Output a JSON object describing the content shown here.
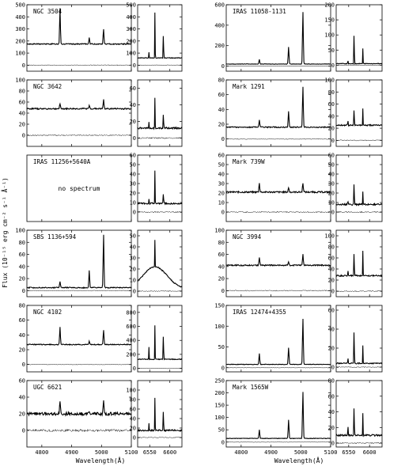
{
  "figure": {
    "ylabel": "Flux (10⁻¹⁵ erg cm⁻² s⁻¹ Å⁻¹)",
    "xlabel": "Wavelength(Å)",
    "no_spectrum_label": "no spectrum"
  },
  "chart_data": [
    {
      "type": "line",
      "title": "NGC 3504",
      "xlim": [
        4750,
        5100
      ],
      "xticks": [
        4800,
        4900,
        5000,
        5100
      ],
      "ylim": [
        -50,
        500
      ],
      "yticks": [
        0,
        100,
        200,
        300,
        400,
        500
      ],
      "baseline": 175,
      "noise": 4,
      "lines": [
        {
          "x": 4861,
          "peak": 300
        },
        {
          "x": 4959,
          "peak": 55
        },
        {
          "x": 5007,
          "peak": 125
        }
      ]
    },
    {
      "type": "line",
      "title": "",
      "xlim": [
        6520,
        6630
      ],
      "xticks": [
        6550,
        6600
      ],
      "ylim": [
        -50,
        500
      ],
      "yticks": [
        0,
        100,
        200,
        300,
        400,
        500
      ],
      "baseline": 60,
      "noise": 3,
      "lines": [
        {
          "x": 6548,
          "peak": 50
        },
        {
          "x": 6563,
          "peak": 430
        },
        {
          "x": 6584,
          "peak": 310
        }
      ]
    },
    {
      "type": "line",
      "title": "IRAS 11058-1131",
      "xlim": [
        4750,
        5100
      ],
      "xticks": [
        4800,
        4900,
        5000,
        5100
      ],
      "ylim": [
        -50,
        600
      ],
      "yticks": [
        0,
        200,
        400,
        600
      ],
      "baseline": 20,
      "noise": 2,
      "lines": [
        {
          "x": 4861,
          "peak": 45
        },
        {
          "x": 4959,
          "peak": 165
        },
        {
          "x": 5007,
          "peak": 510
        }
      ]
    },
    {
      "type": "line",
      "title": "",
      "xlim": [
        6520,
        6630
      ],
      "xticks": [
        6550,
        6600
      ],
      "ylim": [
        -20,
        200
      ],
      "yticks": [
        0,
        50,
        100,
        150,
        200
      ],
      "baseline": 5,
      "noise": 1,
      "lines": [
        {
          "x": 6548,
          "peak": 15
        },
        {
          "x": 6563,
          "peak": 150
        },
        {
          "x": 6584,
          "peak": 52
        }
      ]
    },
    {
      "type": "line",
      "title": "NGC 3642",
      "xlim": [
        4750,
        5100
      ],
      "xticks": [
        4800,
        4900,
        5000,
        5100
      ],
      "ylim": [
        -20,
        100
      ],
      "yticks": [
        0,
        20,
        40,
        60,
        80,
        100
      ],
      "baseline": 48,
      "noise": 1.2,
      "lines": [
        {
          "x": 4861,
          "peak": 10
        },
        {
          "x": 4959,
          "peak": 6
        },
        {
          "x": 5007,
          "peak": 16
        }
      ]
    },
    {
      "type": "line",
      "title": "",
      "xlim": [
        6520,
        6630
      ],
      "xticks": [
        6550,
        6600
      ],
      "ylim": [
        -10,
        70
      ],
      "yticks": [
        0,
        20,
        40,
        60
      ],
      "baseline": 12,
      "noise": 1,
      "lines": [
        {
          "x": 6548,
          "peak": 8
        },
        {
          "x": 6563,
          "peak": 42
        },
        {
          "x": 6584,
          "peak": 28
        }
      ]
    },
    {
      "type": "line",
      "title": "Mark 1291",
      "xlim": [
        4750,
        5100
      ],
      "xticks": [
        4800,
        4900,
        5000,
        5100
      ],
      "ylim": [
        -10,
        80
      ],
      "yticks": [
        0,
        20,
        40,
        60,
        80
      ],
      "baseline": 16,
      "noise": 0.7,
      "lines": [
        {
          "x": 4861,
          "peak": 10
        },
        {
          "x": 4959,
          "peak": 22
        },
        {
          "x": 5007,
          "peak": 55
        }
      ]
    },
    {
      "type": "line",
      "title": "",
      "xlim": [
        6520,
        6630
      ],
      "xticks": [
        6550,
        6600
      ],
      "ylim": [
        -10,
        100
      ],
      "yticks": [
        0,
        20,
        40,
        60,
        80,
        100
      ],
      "baseline": 25,
      "noise": 1,
      "lines": [
        {
          "x": 6548,
          "peak": 10
        },
        {
          "x": 6563,
          "peak": 40
        },
        {
          "x": 6584,
          "peak": 28
        }
      ]
    },
    {
      "type": "line",
      "title": "IRAS 11256+5640A",
      "xlim": [
        4750,
        5100
      ],
      "xticks": [
        4800,
        4900,
        5000,
        5100
      ],
      "ylim": [
        0,
        1
      ],
      "yticks": [],
      "empty": true,
      "baseline": 0,
      "noise": 0,
      "lines": []
    },
    {
      "type": "line",
      "title": "",
      "xlim": [
        6520,
        6630
      ],
      "xticks": [
        6550,
        6600
      ],
      "ylim": [
        -10,
        60
      ],
      "yticks": [
        0,
        10,
        20,
        30,
        40,
        50,
        60
      ],
      "baseline": 9,
      "noise": 0.8,
      "lines": [
        {
          "x": 6548,
          "peak": 5
        },
        {
          "x": 6563,
          "peak": 40
        },
        {
          "x": 6584,
          "peak": 18
        }
      ]
    },
    {
      "type": "line",
      "title": "Mark 739W",
      "xlim": [
        4750,
        5100
      ],
      "xticks": [
        4800,
        4900,
        5000,
        5100
      ],
      "ylim": [
        -10,
        60
      ],
      "yticks": [
        0,
        10,
        20,
        30,
        40,
        50,
        60
      ],
      "baseline": 21,
      "noise": 0.8,
      "lines": [
        {
          "x": 4861,
          "peak": 10
        },
        {
          "x": 4959,
          "peak": 5
        },
        {
          "x": 5007,
          "peak": 10
        }
      ]
    },
    {
      "type": "line",
      "title": "",
      "xlim": [
        6520,
        6630
      ],
      "xticks": [
        6550,
        6600
      ],
      "ylim": [
        -10,
        60
      ],
      "yticks": [
        0,
        10,
        20,
        30,
        40,
        50,
        60
      ],
      "baseline": 8,
      "noise": 0.8,
      "lines": [
        {
          "x": 6548,
          "peak": 5
        },
        {
          "x": 6563,
          "peak": 35
        },
        {
          "x": 6584,
          "peak": 15
        }
      ]
    },
    {
      "type": "line",
      "title": "SBS 1136+594",
      "xlim": [
        4750,
        5100
      ],
      "xticks": [
        4800,
        4900,
        5000,
        5100
      ],
      "ylim": [
        -10,
        100
      ],
      "yticks": [
        0,
        20,
        40,
        60,
        80,
        100
      ],
      "baseline": 5,
      "noise": 0.8,
      "lines": [
        {
          "x": 4861,
          "peak": 10
        },
        {
          "x": 4959,
          "peak": 28
        },
        {
          "x": 5007,
          "peak": 88
        }
      ]
    },
    {
      "type": "line",
      "title": "",
      "xlim": [
        6520,
        6630
      ],
      "xticks": [
        6550,
        6600
      ],
      "ylim": [
        -5,
        55
      ],
      "yticks": [
        0,
        10,
        20,
        30,
        40,
        50
      ],
      "baseline": 2,
      "noise": 0.5,
      "broad": {
        "x": 6563,
        "peak": 20,
        "width": 30
      },
      "lines": [
        {
          "x": 6563,
          "peak": 28
        }
      ]
    },
    {
      "type": "line",
      "title": "NGC 3994",
      "xlim": [
        4750,
        5100
      ],
      "xticks": [
        4800,
        4900,
        5000,
        5100
      ],
      "ylim": [
        -10,
        100
      ],
      "yticks": [
        0,
        20,
        40,
        60,
        80,
        100
      ],
      "baseline": 42,
      "noise": 1,
      "lines": [
        {
          "x": 4861,
          "peak": 14
        },
        {
          "x": 4959,
          "peak": 6
        },
        {
          "x": 5007,
          "peak": 18
        }
      ]
    },
    {
      "type": "line",
      "title": "",
      "xlim": [
        6520,
        6630
      ],
      "xticks": [
        6550,
        6600
      ],
      "ylim": [
        -10,
        110
      ],
      "yticks": [
        0,
        20,
        40,
        60,
        80,
        100
      ],
      "baseline": 28,
      "noise": 1.2,
      "lines": [
        {
          "x": 6548,
          "peak": 12
        },
        {
          "x": 6563,
          "peak": 65
        },
        {
          "x": 6584,
          "peak": 48
        }
      ]
    },
    {
      "type": "line",
      "title": "NGC 4102",
      "xlim": [
        4750,
        5100
      ],
      "xticks": [
        4800,
        4900,
        5000,
        5100
      ],
      "ylim": [
        -10,
        80
      ],
      "yticks": [
        0,
        20,
        40,
        60,
        80
      ],
      "baseline": 27,
      "noise": 0.6,
      "lines": [
        {
          "x": 4861,
          "peak": 24
        },
        {
          "x": 4959,
          "peak": 4
        },
        {
          "x": 5007,
          "peak": 20
        }
      ]
    },
    {
      "type": "line",
      "title": "",
      "xlim": [
        6520,
        6630
      ],
      "xticks": [
        6550,
        6600
      ],
      "ylim": [
        -50,
        900
      ],
      "yticks": [
        0,
        200,
        400,
        600,
        800
      ],
      "baseline": 130,
      "noise": 5,
      "lines": [
        {
          "x": 6548,
          "peak": 180
        },
        {
          "x": 6563,
          "peak": 560
        },
        {
          "x": 6584,
          "peak": 560
        }
      ]
    },
    {
      "type": "line",
      "title": "IRAS 12474+4355",
      "xlim": [
        4750,
        5100
      ],
      "xticks": [
        4800,
        4900,
        5000,
        5100
      ],
      "ylim": [
        -10,
        150
      ],
      "yticks": [
        0,
        50,
        100,
        150
      ],
      "baseline": 8,
      "noise": 0.6,
      "lines": [
        {
          "x": 4861,
          "peak": 26
        },
        {
          "x": 4959,
          "peak": 40
        },
        {
          "x": 5007,
          "peak": 110
        }
      ]
    },
    {
      "type": "line",
      "title": "",
      "xlim": [
        6520,
        6630
      ],
      "xticks": [
        6550,
        6600
      ],
      "ylim": [
        -5,
        65
      ],
      "yticks": [
        0,
        20,
        40,
        60
      ],
      "baseline": 4,
      "noise": 0.6,
      "lines": [
        {
          "x": 6548,
          "peak": 8
        },
        {
          "x": 6563,
          "peak": 52
        },
        {
          "x": 6584,
          "peak": 20
        }
      ]
    },
    {
      "type": "line",
      "title": "UGC 6621",
      "xlim": [
        4750,
        5100
      ],
      "xticks": [
        4800,
        4900,
        5000,
        5100
      ],
      "ylim": [
        -20,
        60
      ],
      "yticks": [
        0,
        20,
        40,
        60
      ],
      "baseline": 20,
      "noise": 1.8,
      "lines": [
        {
          "x": 4861,
          "peak": 16
        },
        {
          "x": 4959,
          "peak": 4
        },
        {
          "x": 5007,
          "peak": 15
        }
      ]
    },
    {
      "type": "line",
      "title": "",
      "xlim": [
        6520,
        6630
      ],
      "xticks": [
        6550,
        6600
      ],
      "ylim": [
        -20,
        120
      ],
      "yticks": [
        0,
        20,
        40,
        60,
        80,
        100
      ],
      "baseline": 15,
      "noise": 1.5,
      "lines": [
        {
          "x": 6548,
          "peak": 15
        },
        {
          "x": 6563,
          "peak": 80
        },
        {
          "x": 6584,
          "peak": 65
        }
      ]
    },
    {
      "type": "line",
      "title": "Mark 1565W",
      "xlim": [
        4750,
        5100
      ],
      "xticks": [
        4800,
        4900,
        5000,
        5100
      ],
      "ylim": [
        -20,
        250
      ],
      "yticks": [
        0,
        50,
        100,
        150,
        200,
        250
      ],
      "baseline": 15,
      "noise": 1,
      "lines": [
        {
          "x": 4861,
          "peak": 35
        },
        {
          "x": 4959,
          "peak": 75
        },
        {
          "x": 5007,
          "peak": 190
        }
      ]
    },
    {
      "type": "line",
      "title": "",
      "xlim": [
        6520,
        6630
      ],
      "xticks": [
        6550,
        6600
      ],
      "ylim": [
        -5,
        80
      ],
      "yticks": [
        0,
        20,
        40,
        60,
        80
      ],
      "baseline": 10,
      "noise": 1,
      "lines": [
        {
          "x": 6548,
          "peak": 15
        },
        {
          "x": 6563,
          "peak": 55
        },
        {
          "x": 6584,
          "peak": 30
        }
      ]
    }
  ]
}
